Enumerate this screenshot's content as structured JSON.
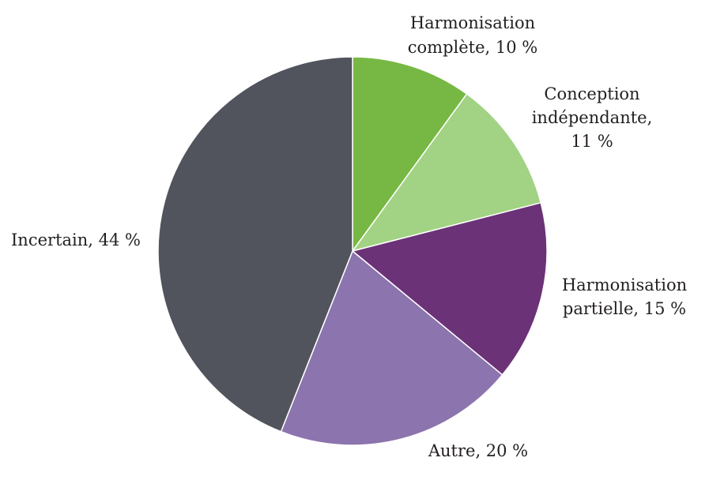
{
  "chart_data": {
    "type": "pie",
    "title": "",
    "start_angle_deg": 0,
    "direction": "clockwise",
    "slices": [
      {
        "label_lines": [
          "Harmonisation",
          "complète, 10 %"
        ],
        "value": 10,
        "color": "#76b843"
      },
      {
        "label_lines": [
          "Conception",
          "indépendante,",
          "11 %"
        ],
        "value": 11,
        "color": "#a2d283"
      },
      {
        "label_lines": [
          "Harmonisation",
          "partielle, 15 %"
        ],
        "value": 15,
        "color": "#6b3277"
      },
      {
        "label_lines": [
          "Autre, 20 %"
        ],
        "value": 20,
        "color": "#8c74ae"
      },
      {
        "label_lines": [
          "Incertain, 44 %"
        ],
        "value": 44,
        "color": "#51545d"
      }
    ]
  }
}
